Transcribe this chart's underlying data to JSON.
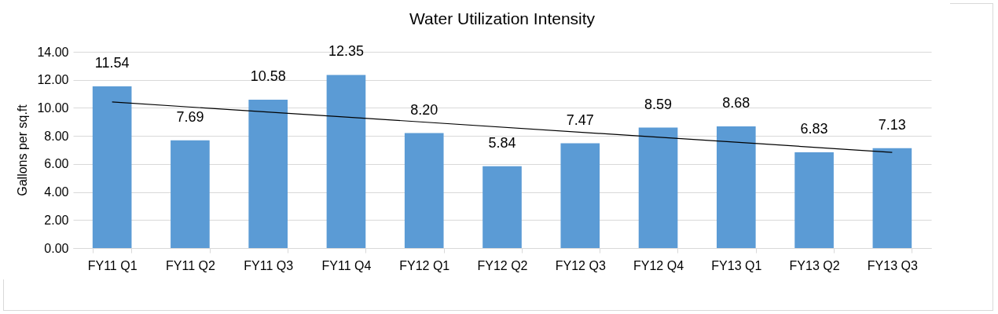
{
  "chart_data": {
    "type": "bar",
    "title": "Water Utilization Intensity",
    "ylabel": "Gallons per sq.ft",
    "categories": [
      "FY11 Q1",
      "FY11 Q2",
      "FY11 Q3",
      "FY11 Q4",
      "FY12 Q1",
      "FY12 Q2",
      "FY12 Q3",
      "FY12 Q4",
      "FY13 Q1",
      "FY13 Q2",
      "FY13 Q3"
    ],
    "series": [
      {
        "color": "#5b9bd5",
        "values": [
          11.54,
          7.69,
          10.58,
          12.35,
          8.2,
          5.84,
          7.47,
          8.59,
          8.68,
          6.83,
          7.13
        ],
        "value_labels": [
          "11.54",
          "7.69",
          "10.58",
          "12.35",
          "8.20",
          "5.84",
          "7.47",
          "8.59",
          "8.68",
          "6.83",
          "7.13"
        ]
      },
      {
        "type": "line",
        "color": "#000000",
        "x": [
          "FY11 Q1",
          "FY13 Q3"
        ],
        "values": [
          10.42,
          6.83
        ]
      }
    ],
    "ylim": [
      0,
      14
    ],
    "yticks": [
      {
        "value": 0,
        "label": "0.00"
      },
      {
        "value": 2,
        "label": "2.00"
      },
      {
        "value": 4,
        "label": "4.00"
      },
      {
        "value": 6,
        "label": "6.00"
      },
      {
        "value": 8,
        "label": "8.00"
      },
      {
        "value": 10,
        "label": "10.00"
      },
      {
        "value": 12,
        "label": "12.00"
      },
      {
        "value": 14,
        "label": "14.00"
      }
    ],
    "grid": "y"
  }
}
